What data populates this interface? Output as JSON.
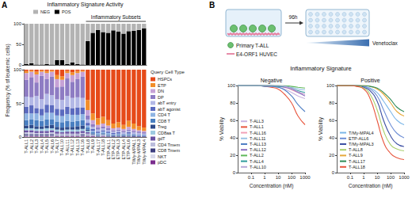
{
  "panels": [
    "A",
    "B"
  ],
  "chart_data": [
    {
      "type": "bar",
      "title": "Inflammatory Signature Activity",
      "ylabel": "Frequency (% of leukemic cells)",
      "annotation": "Inflammatory Subsets",
      "stacked": true,
      "legend": "top",
      "tick_labels": "y",
      "categories": [
        "T-ALL1",
        "T-ALL2",
        "T-ALL3",
        "T-ALL4",
        "T-ALL5",
        "T-ALL6",
        "T-ALL7",
        "T-ALL10",
        "T-ALL11",
        "T-ALL12",
        "T-ALL13",
        "T-ALL16",
        "T-ALL8",
        "T-ALL9",
        "T-ALL17",
        "T-ALL18",
        "ETP-ALL1",
        "ETP-ALL2",
        "ETP-ALL3",
        "ETP-ALL4",
        "ETP-ALL6",
        "T/My-MPAL1",
        "T/My-MPAL3",
        "T/My-MPAL4"
      ],
      "series": [
        {
          "name": "NEG",
          "color": "#b3b3b3",
          "values": [
            98,
            96,
            99,
            99,
            98,
            99,
            88,
            88,
            98,
            94,
            98,
            99,
            42,
            22,
            15,
            20,
            22,
            16,
            19,
            24,
            18,
            17,
            15,
            11
          ]
        },
        {
          "name": "POS",
          "color": "#000000",
          "values": [
            2,
            4,
            1,
            1,
            2,
            1,
            12,
            12,
            2,
            6,
            2,
            1,
            58,
            78,
            85,
            80,
            78,
            84,
            81,
            76,
            82,
            83,
            85,
            89
          ]
        }
      ],
      "ylim": [
        0,
        100
      ],
      "yticks": [
        0,
        50,
        100
      ]
    },
    {
      "type": "bar",
      "legend_title": "Query Cell Type",
      "stacked": true,
      "legend": "right",
      "categories": [
        "T-ALL1",
        "T-ALL2",
        "T-ALL3",
        "T-ALL4",
        "T-ALL5",
        "T-ALL6",
        "T-ALL7",
        "T-ALL10",
        "T-ALL11",
        "T-ALL12",
        "T-ALL13",
        "T-ALL16",
        "T-ALL8",
        "T-ALL9",
        "T-ALL17",
        "T-ALL18",
        "ETP-ALL1",
        "ETP-ALL2",
        "ETP-ALL3",
        "ETP-ALL4",
        "ETP-ALL6",
        "T/My-MPAL1",
        "T/My-MPAL3",
        "T/My-MPAL4"
      ],
      "series": [
        {
          "name": "HSPCs",
          "color": "#e64a19",
          "values": [
            2,
            1,
            3,
            1,
            2,
            1,
            8,
            10,
            2,
            4,
            2,
            1,
            45,
            65,
            72,
            70,
            75,
            80,
            78,
            82,
            76,
            80,
            84,
            86
          ]
        },
        {
          "name": "ETP",
          "color": "#f28e2b",
          "values": [
            3,
            2,
            4,
            2,
            3,
            2,
            6,
            5,
            3,
            4,
            3,
            2,
            15,
            10,
            10,
            10,
            8,
            7,
            8,
            6,
            9,
            8,
            6,
            5
          ]
        },
        {
          "name": "DN",
          "color": "#c7a2d6",
          "values": [
            10,
            8,
            12,
            6,
            9,
            7,
            12,
            10,
            8,
            10,
            9,
            7,
            8,
            6,
            4,
            4,
            4,
            3,
            3,
            3,
            4,
            3,
            2,
            2
          ]
        },
        {
          "name": "DP",
          "color": "#8e7cc3",
          "values": [
            25,
            30,
            20,
            35,
            22,
            28,
            18,
            20,
            26,
            24,
            27,
            32,
            6,
            4,
            3,
            3,
            3,
            2,
            2,
            2,
            2,
            2,
            2,
            2
          ]
        },
        {
          "name": "abT entry",
          "color": "#b3b8e6",
          "values": [
            15,
            12,
            18,
            14,
            16,
            15,
            14,
            14,
            16,
            15,
            15,
            14,
            5,
            3,
            3,
            3,
            2,
            2,
            2,
            2,
            2,
            2,
            2,
            1
          ]
        },
        {
          "name": "abT agonist",
          "color": "#5b6abf",
          "values": [
            10,
            12,
            8,
            10,
            12,
            11,
            10,
            10,
            11,
            10,
            11,
            10,
            4,
            3,
            2,
            2,
            2,
            2,
            2,
            1,
            2,
            1,
            1,
            1
          ]
        },
        {
          "name": "CD4 T",
          "color": "#8fb4e3",
          "values": [
            10,
            9,
            10,
            8,
            10,
            10,
            9,
            9,
            10,
            10,
            9,
            9,
            3,
            2,
            2,
            2,
            2,
            1,
            1,
            1,
            1,
            1,
            1,
            1
          ]
        },
        {
          "name": "CD8 T",
          "color": "#4a7fc1",
          "values": [
            8,
            8,
            9,
            8,
            9,
            8,
            8,
            8,
            9,
            8,
            8,
            8,
            3,
            2,
            1,
            1,
            1,
            1,
            1,
            1,
            1,
            1,
            1,
            1
          ]
        },
        {
          "name": "Treg",
          "color": "#2e4a8a",
          "values": [
            4,
            5,
            4,
            4,
            4,
            5,
            4,
            4,
            4,
            4,
            5,
            5,
            2,
            1,
            1,
            1,
            1,
            1,
            1,
            1,
            1,
            1,
            0,
            0
          ]
        },
        {
          "name": "CD8aa T",
          "color": "#9ecae1",
          "values": [
            3,
            3,
            3,
            3,
            4,
            3,
            3,
            3,
            3,
            3,
            3,
            3,
            2,
            1,
            1,
            1,
            1,
            0,
            1,
            0,
            1,
            0,
            0,
            0
          ]
        },
        {
          "name": "gdT",
          "color": "#6a51a3",
          "values": [
            3,
            3,
            3,
            3,
            3,
            3,
            3,
            2,
            3,
            3,
            3,
            3,
            2,
            1,
            1,
            1,
            1,
            1,
            1,
            1,
            1,
            1,
            1,
            1
          ]
        },
        {
          "name": "CD4 Tmem",
          "color": "#bcbddc",
          "values": [
            3,
            3,
            2,
            2,
            2,
            3,
            2,
            2,
            2,
            2,
            2,
            2,
            2,
            1,
            0,
            1,
            0,
            0,
            0,
            0,
            0,
            0,
            0,
            0
          ]
        },
        {
          "name": "CD8 Tmem",
          "color": "#3f3f7f",
          "values": [
            2,
            2,
            2,
            2,
            2,
            2,
            1,
            1,
            1,
            1,
            1,
            2,
            1,
            0,
            0,
            0,
            0,
            0,
            0,
            0,
            0,
            0,
            0,
            0
          ]
        },
        {
          "name": "NKT",
          "color": "#dadaeb",
          "values": [
            1,
            1,
            1,
            1,
            1,
            1,
            1,
            1,
            1,
            1,
            1,
            1,
            1,
            0,
            0,
            0,
            0,
            0,
            0,
            0,
            0,
            0,
            0,
            0
          ]
        },
        {
          "name": "pDC",
          "color": "#7b2d8e",
          "values": [
            1,
            1,
            1,
            1,
            1,
            1,
            1,
            1,
            1,
            1,
            1,
            1,
            1,
            1,
            0,
            1,
            0,
            0,
            0,
            0,
            0,
            0,
            0,
            0
          ]
        }
      ],
      "ylim": [
        0,
        100
      ],
      "yticks": [
        0,
        50,
        100
      ]
    },
    {
      "type": "line",
      "title": "Negative",
      "xlabel": "Concentration (nM)",
      "ylabel": "% Viability",
      "log": "x",
      "marker": "none",
      "legend": "lower left",
      "x": [
        0.01,
        0.03,
        0.1,
        0.3,
        1,
        3,
        10,
        30,
        100,
        300,
        1000
      ],
      "xlim": [
        0.01,
        1000
      ],
      "xticks": [
        0.1,
        1,
        10,
        100,
        1000
      ],
      "ylim": [
        0,
        100
      ],
      "yticks": [
        0,
        20,
        40,
        60,
        80,
        100
      ],
      "series": [
        {
          "name": "T-ALL3",
          "color": "#c9b3e0",
          "values": [
            100,
            100,
            100,
            100,
            100,
            99,
            98,
            96,
            92,
            88,
            85
          ]
        },
        {
          "name": "T-ALL1",
          "color": "#e8553d",
          "values": [
            100,
            100,
            100,
            100,
            99,
            98,
            96,
            90,
            80,
            65,
            55
          ]
        },
        {
          "name": "T-ALL16",
          "color": "#f2a2b8",
          "values": [
            100,
            100,
            100,
            100,
            100,
            100,
            99,
            98,
            95,
            92,
            90
          ]
        },
        {
          "name": "T-ALL11",
          "color": "#9cc3e6",
          "values": [
            100,
            100,
            100,
            100,
            100,
            100,
            100,
            99,
            98,
            96,
            95
          ]
        },
        {
          "name": "T-ALL13",
          "color": "#4f7fc4",
          "values": [
            100,
            100,
            100,
            100,
            99,
            99,
            98,
            95,
            88,
            78,
            70
          ]
        },
        {
          "name": "T-ALL12",
          "color": "#8b6fc0",
          "values": [
            100,
            100,
            100,
            100,
            100,
            100,
            99,
            98,
            96,
            92,
            88
          ]
        },
        {
          "name": "T-ALL2",
          "color": "#5fb85a",
          "values": [
            100,
            100,
            100,
            100,
            100,
            100,
            100,
            100,
            99,
            98,
            97
          ]
        },
        {
          "name": "T-ALL4",
          "color": "#2f9c9c",
          "values": [
            100,
            100,
            100,
            100,
            100,
            100,
            99,
            99,
            97,
            94,
            92
          ]
        },
        {
          "name": "T-ALL10",
          "color": "#b7a7d9",
          "values": [
            100,
            100,
            100,
            100,
            100,
            100,
            100,
            99,
            97,
            93,
            90
          ]
        }
      ]
    },
    {
      "type": "line",
      "title": "Positive",
      "xlabel": "Concentration (nM)",
      "ylabel": "% Viability",
      "log": "x",
      "marker": "none",
      "legend": "lower left",
      "x": [
        0.01,
        0.03,
        0.1,
        0.3,
        1,
        3,
        10,
        30,
        100,
        300,
        1000
      ],
      "xlim": [
        0.01,
        1000
      ],
      "xticks": [
        0.1,
        1,
        10,
        100,
        1000
      ],
      "ylim": [
        0,
        100
      ],
      "yticks": [
        0,
        20,
        40,
        60,
        80,
        100
      ],
      "series": [
        {
          "name": "T/My-MPAL4",
          "color": "#7db7e8",
          "values": [
            100,
            100,
            100,
            100,
            99,
            97,
            92,
            82,
            70,
            60,
            55
          ]
        },
        {
          "name": "ETP-ALL6",
          "color": "#6f8fd6",
          "values": [
            100,
            100,
            100,
            100,
            99,
            96,
            88,
            72,
            55,
            45,
            40
          ]
        },
        {
          "name": "T/My-MPAL3",
          "color": "#3c4fa3",
          "values": [
            100,
            100,
            100,
            100,
            98,
            94,
            82,
            60,
            42,
            33,
            30
          ]
        },
        {
          "name": "T-ALL8",
          "color": "#a9cf6b",
          "values": [
            100,
            100,
            100,
            99,
            97,
            90,
            72,
            48,
            32,
            27,
            25
          ]
        },
        {
          "name": "T-ALL9",
          "color": "#e7a93b",
          "values": [
            100,
            100,
            100,
            100,
            100,
            99,
            96,
            90,
            80,
            70,
            65
          ]
        },
        {
          "name": "T-ALL17",
          "color": "#2e8b57",
          "values": [
            100,
            100,
            100,
            100,
            100,
            99,
            97,
            92,
            84,
            75,
            70
          ]
        },
        {
          "name": "T-ALL18",
          "color": "#e8553d",
          "values": [
            100,
            100,
            100,
            99,
            96,
            85,
            60,
            35,
            22,
            17,
            15
          ]
        }
      ]
    }
  ],
  "panel_b_title": "Inflammatory Signature",
  "schematic": {
    "duration": "96h",
    "cells": "Primary T-ALL",
    "endothelium": "E4-ORF1 HUVEC",
    "drug": "Venetoclax"
  }
}
